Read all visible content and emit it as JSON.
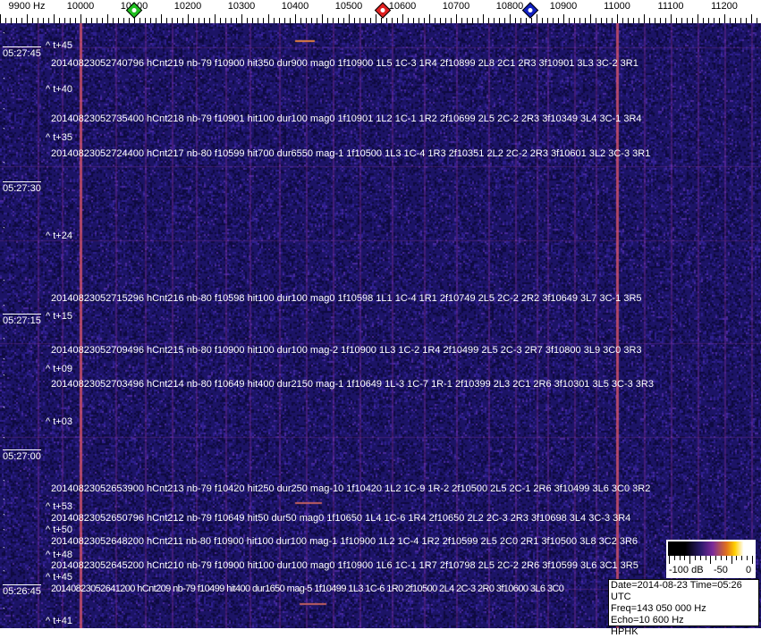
{
  "axis": {
    "unit_label": "9900 Hz",
    "ticks_hz": [
      10000,
      10100,
      10200,
      10300,
      10400,
      10500,
      10600,
      10700,
      10800,
      10900,
      11000,
      11100,
      11200
    ],
    "markers": [
      {
        "name": "green-marker",
        "freq_hz": 10100,
        "color": "#20c020"
      },
      {
        "name": "red-marker",
        "freq_hz": 10563,
        "color": "#e02020"
      },
      {
        "name": "blue-marker",
        "freq_hz": 10838,
        "color": "#1020c0"
      }
    ]
  },
  "waterfall": {
    "background_color": "#1c1466",
    "carrier_lines_hz": [
      10000,
      11000
    ],
    "time_labels": [
      "05:27:45",
      "05:27:30",
      "05:27:15",
      "05:27:00",
      "05:26:45"
    ],
    "event_markers": [
      "^ t+45",
      "^ t+40",
      "^ t+35",
      "^ t+24",
      "^ t+15",
      "^ t+09",
      "^ t+03",
      "^ t+53",
      "^ t+50",
      "^ t+48",
      "^ t+45",
      "^ t+41"
    ],
    "detections": [
      "20140823052740796 hCnt219 nb-79 f10900 hit350 dur900 mag0 1f10900 1L5 1C-3 1R4 2f10899 2L8 2C1 2R3 3f10901 3L3 3C-2 3R1",
      "20140823052735400 hCnt218 nb-79 f10901 hit100 dur100 mag0 1f10901 1L2 1C-1 1R2 2f10699 2L5 2C-2 2R3 3f10349 3L4 3C-1 3R4",
      "20140823052724400 hCnt217 nb-80 f10599 hit700 dur6550 mag-1 1f10500 1L3 1C-4 1R3 2f10351 2L2 2C-2 2R3 3f10601 3L2 3C-3 3R1",
      "20140823052715296 hCnt216 nb-80 f10598 hit100 dur100 mag0 1f10598 1L1 1C-4 1R1 2f10749 2L5 2C-2 2R2 3f10649 3L7 3C-1 3R5",
      "20140823052709496 hCnt215 nb-80 f10900 hit100 dur100 mag-2 1f10900 1L3 1C-2 1R4 2f10499 2L5 2C-3 2R7 3f10800 3L9 3C0 3R3",
      "20140823052703496 hCnt214 nb-80 f10649 hit400 dur2150 mag-1 1f10649 1L-3 1C-7 1R-1 2f10399 2L3 2C1 2R6 3f10301 3L5 3C-3 3R3",
      "20140823052653900 hCnt213 nb-79 f10420 hit250 dur250 mag-10 1f10420 1L2 1C-9 1R-2 2f10500 2L5 2C-1 2R6 3f10499 3L6 3C0 3R2",
      "20140823052650796 hCnt212 nb-79 f10649 hit50 dur50 mag0 1f10650 1L4 1C-6 1R4 2f10650 2L2 2C-3 2R3 3f10698 3L4 3C-3 3R4",
      "20140823052648200 hCnt211 nb-80 f10900 hit100 dur100 mag-1 1f10900 1L2 1C-4 1R2 2f10599 2L5 2C0 2R1 3f10500 3L8 3C2 3R6",
      "20140823052645200 hCnt210 nb-79 f10900 hit100 dur100 mag0 1f10900 1L6 1C-1 1R7 2f10798 2L5 2C-2 2R6 3f10599 3L6 3C1 3R5",
      "20140823052641200 hCnt209 nb-79 f10499 hit400 dur1650 mag-5 1f10499 1L3 1C-6 1R0 2f10500 2L4 2C-3 2R0 3f10600 3L6 3C0"
    ]
  },
  "colorbar": {
    "labels": [
      "-100 dB",
      "-50",
      "0"
    ]
  },
  "info": {
    "date_time": "Date=2014-08-23 Time=05:26 UTC",
    "freq": "Freq=143 050 000 Hz",
    "echo": "Echo=10 600 Hz",
    "station": "HPHK"
  }
}
